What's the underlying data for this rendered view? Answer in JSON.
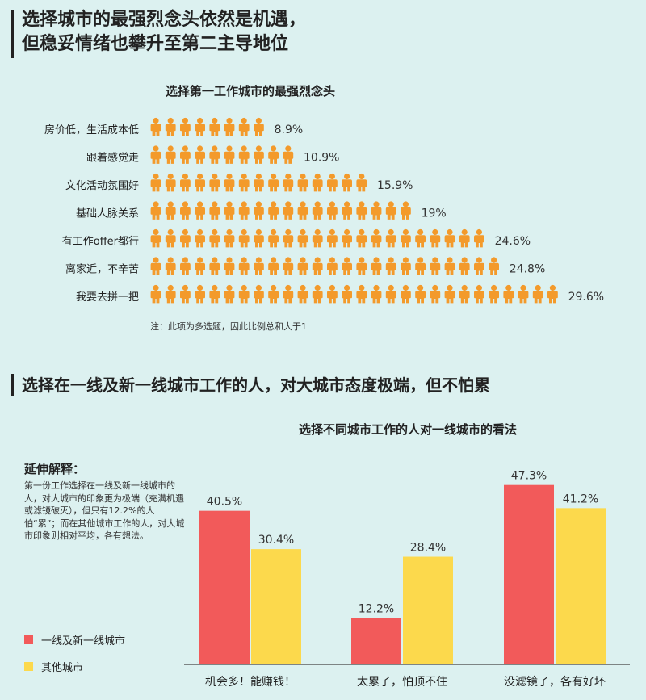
{
  "header": {
    "title_line1": "选择城市的最强烈念头依然是机遇，",
    "title_line2": "但稳妥情绪也攀升至第二主导地位"
  },
  "pictogram": {
    "title": "选择第一工作城市的最强烈念头",
    "note": "注：此项为多选题，因此比例总和大于1"
  },
  "section2": {
    "title": "选择在一线及新一线城市工作的人，对大城市态度极端，但不怕累"
  },
  "explanation": {
    "title": "延伸解释：",
    "body": "第一份工作选择在一线及新一线城市的人，对大城市的印象更为极端（充满机遇或滤镜破灭），但只有12.2%的人怕“累”；而在其他城市工作的人，对大城市印象则相对平均，各有想法。"
  },
  "colors": {
    "background": "#dcf1f0",
    "person_icon": "#f39a2b",
    "tier1": "#f25a5a",
    "other": "#fcd94c"
  },
  "chart_data": [
    {
      "type": "bar",
      "style": "pictogram",
      "icon": "person-icon",
      "title": "选择第一工作城市的最强烈念头",
      "categories": [
        "房价低，生活成本低",
        "跟着感觉走",
        "文化活动氛围好",
        "基础人脉关系",
        "有工作offer都行",
        "离家近，不辛苦",
        "我要去拼一把"
      ],
      "values": [
        8.9,
        10.9,
        15.9,
        19,
        24.6,
        24.8,
        29.6
      ],
      "value_labels": [
        "8.9%",
        "10.9%",
        "15.9%",
        "19%",
        "24.6%",
        "24.8%",
        "29.6%"
      ],
      "icon_counts": [
        8,
        10,
        15,
        18,
        23,
        24,
        28
      ],
      "orientation": "horizontal"
    },
    {
      "type": "bar",
      "title": "选择不同城市工作的人对一线城市的看法",
      "categories": [
        "机会多！能赚钱！",
        "太累了，怕顶不住",
        "没滤镜了，各有好坏"
      ],
      "series": [
        {
          "name": "一线及新一线城市",
          "values": [
            40.5,
            12.2,
            47.3
          ],
          "labels": [
            "40.5%",
            "12.2%",
            "47.3%"
          ]
        },
        {
          "name": "其他城市",
          "values": [
            30.4,
            28.4,
            41.2
          ],
          "labels": [
            "30.4%",
            "28.4%",
            "41.2%"
          ]
        }
      ],
      "ylim": [
        0,
        50
      ],
      "grid": false,
      "legend": "bottom-left"
    }
  ]
}
